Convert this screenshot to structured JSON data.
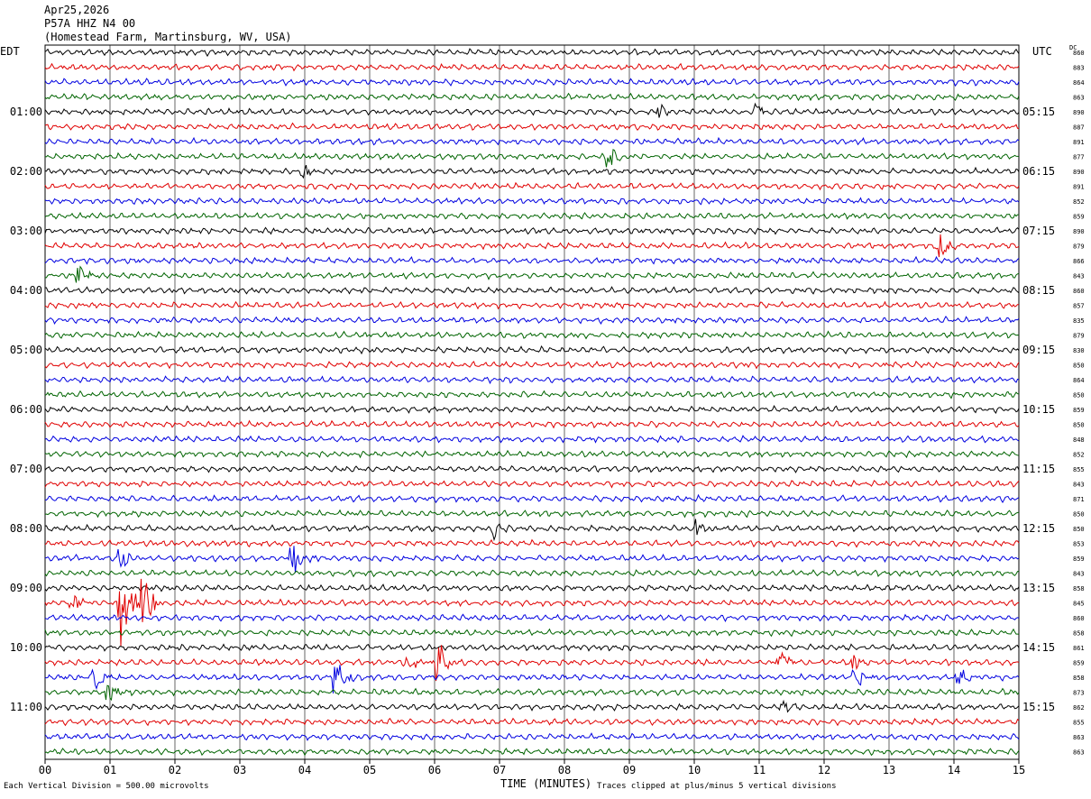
{
  "header": {
    "date": "Apr25,2026",
    "station": "P57A HHZ N4 00",
    "location": "(Homestead Farm, Martinsburg, WV, USA)"
  },
  "left_zone_label": "EDT",
  "right_zone_label": "UTC",
  "dc_label": "DC",
  "x_axis_title": "TIME (MINUTES)",
  "x_ticks": [
    "00",
    "01",
    "02",
    "03",
    "04",
    "05",
    "06",
    "07",
    "08",
    "09",
    "10",
    "11",
    "12",
    "13",
    "14",
    "15"
  ],
  "footer_scale": "Each Vertical Division =  500.00 microvolts",
  "footer_clip": "Traces clipped at plus/minus 5 vertical divisions",
  "colors": {
    "trace_cycle": [
      "#000000",
      "#e00000",
      "#0000e0",
      "#006400"
    ],
    "grid": "#000000"
  },
  "chart_data": {
    "type": "line",
    "title": "",
    "xlabel": "TIME (MINUTES)",
    "xlim": [
      0,
      15
    ],
    "trace_count": 48,
    "trace_interval_minutes": 15,
    "grid": true,
    "left_hour_labels": [
      "01:00",
      "02:00",
      "03:00",
      "04:00",
      "05:00",
      "06:00",
      "07:00",
      "08:00",
      "09:00",
      "10:00",
      "11:00"
    ],
    "right_hour_labels": [
      "05:15",
      "06:15",
      "07:15",
      "08:15",
      "09:15",
      "10:15",
      "11:15",
      "12:15",
      "13:15",
      "14:15",
      "15:15"
    ],
    "hour_label_trace_index": [
      4,
      8,
      12,
      16,
      20,
      24,
      28,
      32,
      36,
      40,
      44
    ],
    "dc_offsets": [
      860,
      883,
      864,
      863,
      890,
      887,
      891,
      877,
      890,
      891,
      852,
      859,
      890,
      879,
      866,
      843,
      860,
      857,
      835,
      879,
      830,
      850,
      864,
      850,
      859,
      850,
      848,
      852,
      855,
      843,
      871,
      850,
      850,
      853,
      859,
      843,
      858,
      845,
      860,
      858,
      861,
      859,
      858,
      873,
      862,
      855,
      863,
      863
    ],
    "events": [
      {
        "trace": 4,
        "minute": 9.5,
        "amp": 0.5
      },
      {
        "trace": 4,
        "minute": 11.0,
        "amp": 0.5
      },
      {
        "trace": 7,
        "minute": 8.7,
        "amp": 0.8
      },
      {
        "trace": 8,
        "minute": 4.0,
        "amp": 0.4
      },
      {
        "trace": 13,
        "minute": 13.8,
        "amp": 1.0
      },
      {
        "trace": 15,
        "minute": 0.55,
        "amp": 0.7
      },
      {
        "trace": 32,
        "minute": 6.9,
        "amp": 0.8
      },
      {
        "trace": 32,
        "minute": 10.1,
        "amp": 0.6
      },
      {
        "trace": 34,
        "minute": 3.85,
        "amp": 1.4
      },
      {
        "trace": 34,
        "minute": 1.2,
        "amp": 0.8
      },
      {
        "trace": 37,
        "minute": 1.2,
        "amp": 3.6
      },
      {
        "trace": 37,
        "minute": 1.55,
        "amp": 2.2
      },
      {
        "trace": 37,
        "minute": 0.45,
        "amp": 0.6
      },
      {
        "trace": 41,
        "minute": 5.6,
        "amp": 0.7
      },
      {
        "trace": 41,
        "minute": 6.1,
        "amp": 1.3
      },
      {
        "trace": 41,
        "minute": 11.35,
        "amp": 1.0
      },
      {
        "trace": 41,
        "minute": 12.5,
        "amp": 0.7
      },
      {
        "trace": 42,
        "minute": 0.8,
        "amp": 1.0
      },
      {
        "trace": 42,
        "minute": 4.5,
        "amp": 1.6
      },
      {
        "trace": 42,
        "minute": 12.5,
        "amp": 1.1
      },
      {
        "trace": 42,
        "minute": 14.1,
        "amp": 0.7
      },
      {
        "trace": 43,
        "minute": 1.0,
        "amp": 0.9
      },
      {
        "trace": 44,
        "minute": 11.4,
        "amp": 0.5
      }
    ]
  }
}
